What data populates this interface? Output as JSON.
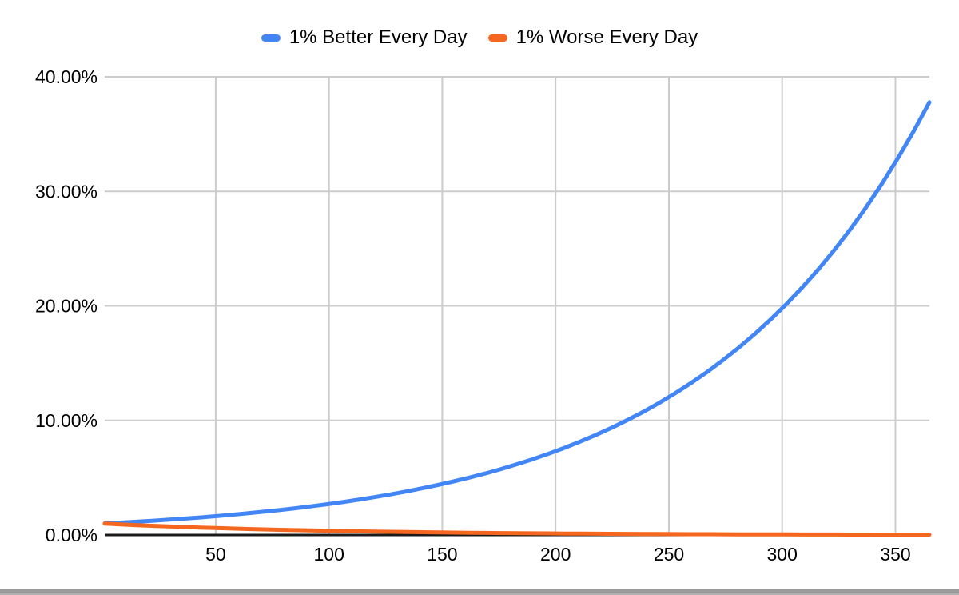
{
  "chart_data": {
    "type": "line",
    "title": "",
    "legend_position": "top",
    "grid": true,
    "xlim": [
      1,
      365
    ],
    "ylim": [
      0,
      40
    ],
    "x_ticks": {
      "values": [
        50,
        100,
        150,
        200,
        250,
        300,
        350
      ],
      "labels": [
        "50",
        "100",
        "150",
        "200",
        "250",
        "300",
        "350"
      ]
    },
    "y_ticks": {
      "values": [
        0,
        10,
        20,
        30,
        40
      ],
      "labels": [
        "0.00%",
        "10.00%",
        "20.00%",
        "30.00%",
        "40.00%"
      ]
    },
    "x": [
      1,
      8,
      15,
      22,
      29,
      36,
      43,
      50,
      57,
      64,
      71,
      78,
      85,
      92,
      99,
      106,
      113,
      120,
      127,
      134,
      141,
      148,
      155,
      162,
      169,
      176,
      183,
      190,
      197,
      204,
      211,
      218,
      225,
      232,
      239,
      246,
      253,
      260,
      267,
      274,
      281,
      288,
      295,
      302,
      309,
      316,
      323,
      330,
      337,
      344,
      351,
      358,
      365
    ],
    "series": [
      {
        "name": "1% Better Every Day",
        "color": "#4285f4",
        "values": [
          1.01,
          1.08,
          1.16,
          1.24,
          1.33,
          1.43,
          1.53,
          1.64,
          1.76,
          1.89,
          2.03,
          2.17,
          2.33,
          2.5,
          2.68,
          2.87,
          3.08,
          3.3,
          3.54,
          3.79,
          4.07,
          4.36,
          4.68,
          5.01,
          5.37,
          5.76,
          6.18,
          6.62,
          7.1,
          7.61,
          8.16,
          8.75,
          9.38,
          10.06,
          10.78,
          11.56,
          12.4,
          13.29,
          14.25,
          15.28,
          16.38,
          17.56,
          18.83,
          20.18,
          21.64,
          23.2,
          24.87,
          26.67,
          28.59,
          30.66,
          32.87,
          35.24,
          37.78
        ]
      },
      {
        "name": "1% Worse Every Day",
        "color": "#f5671f",
        "values": [
          0.99,
          0.923,
          0.86,
          0.802,
          0.747,
          0.696,
          0.649,
          0.605,
          0.564,
          0.526,
          0.49,
          0.457,
          0.426,
          0.397,
          0.37,
          0.345,
          0.321,
          0.299,
          0.279,
          0.26,
          0.242,
          0.226,
          0.211,
          0.196,
          0.183,
          0.171,
          0.159,
          0.148,
          0.138,
          0.129,
          0.12,
          0.112,
          0.104,
          0.097,
          0.091,
          0.084,
          0.079,
          0.073,
          0.068,
          0.064,
          0.059,
          0.055,
          0.052,
          0.048,
          0.045,
          0.042,
          0.039,
          0.036,
          0.034,
          0.031,
          0.029,
          0.027,
          0.026
        ]
      }
    ],
    "style": {
      "grid_color": "#cccccc",
      "axis_color": "#1a1a1a",
      "label_color": "#000000",
      "background": "#ffffff"
    }
  },
  "window": {
    "bottom_edge": ""
  }
}
